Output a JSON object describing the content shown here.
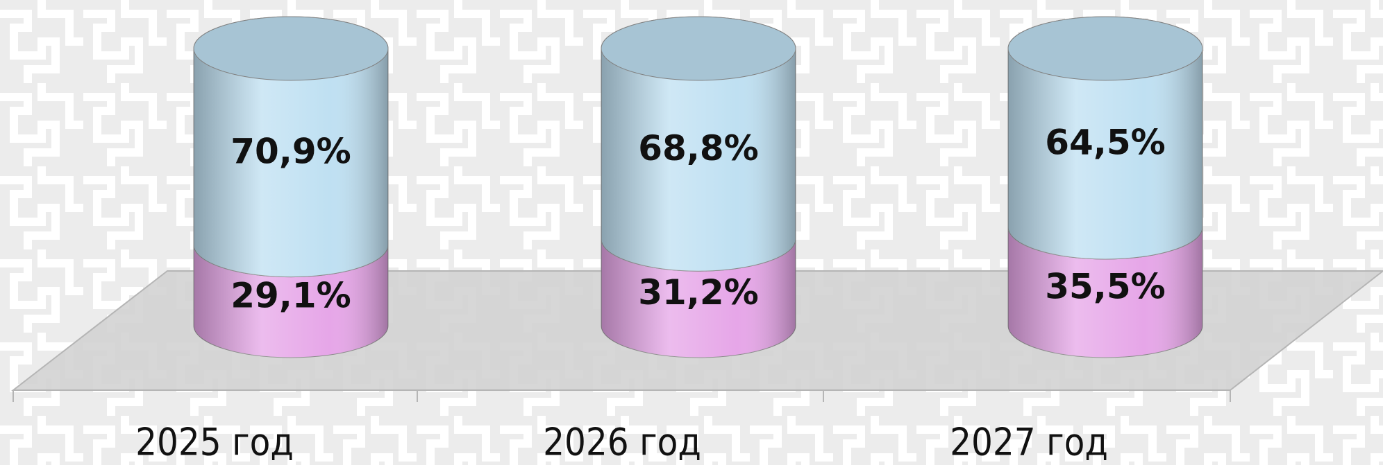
{
  "chart_data": {
    "type": "cylinder",
    "categories": [
      "2025 год",
      "2026 год",
      "2027 год"
    ],
    "series": [
      {
        "color": "#e6a6e8",
        "values": [
          29.1,
          31.2,
          35.5
        ],
        "value_labels": [
          "29,1%",
          "31,2%",
          "35,5%"
        ]
      },
      {
        "color": "#bfe0f2",
        "values": [
          70.9,
          68.8,
          64.5
        ],
        "value_labels": [
          "70,9%",
          "68,8%",
          "64,5%"
        ]
      }
    ]
  }
}
